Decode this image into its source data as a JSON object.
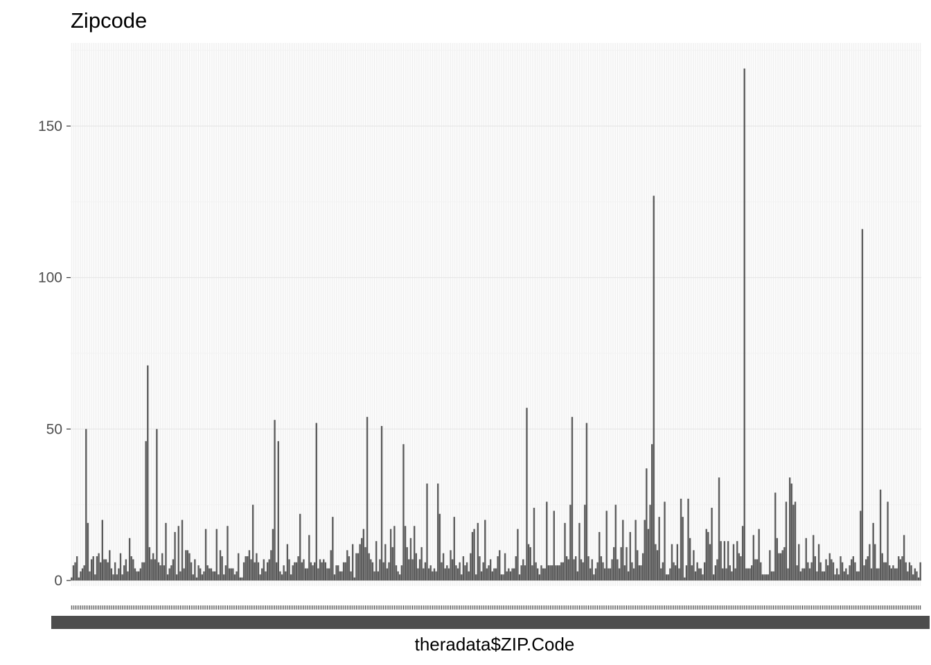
{
  "chart_data": {
    "type": "bar",
    "title": "Zipcode",
    "xlabel": "theradata$ZIP.Code",
    "ylabel": "",
    "ylim": [
      0,
      172
    ],
    "yticks": [
      0,
      50,
      100,
      150
    ],
    "grid": true,
    "bar_color": "#595959",
    "x_tick_labels_note": "467 overlapping zip code labels rendered illegibly",
    "values": [
      1,
      5,
      6,
      8,
      1,
      3,
      4,
      5,
      50,
      19,
      3,
      7,
      8,
      2,
      8,
      9,
      6,
      20,
      7,
      7,
      6,
      10,
      4,
      2,
      6,
      2,
      4,
      9,
      2,
      5,
      7,
      3,
      14,
      8,
      7,
      4,
      3,
      3,
      4,
      6,
      6,
      46,
      71,
      11,
      7,
      9,
      7,
      50,
      6,
      5,
      9,
      5,
      19,
      2,
      4,
      5,
      7,
      16,
      2,
      18,
      3,
      20,
      4,
      10,
      10,
      9,
      6,
      2,
      7,
      1,
      5,
      4,
      2,
      3,
      17,
      5,
      4,
      4,
      3,
      3,
      17,
      2,
      10,
      8,
      2,
      5,
      18,
      4,
      4,
      4,
      2,
      3,
      9,
      1,
      1,
      6,
      8,
      8,
      10,
      7,
      25,
      6,
      9,
      6,
      2,
      4,
      7,
      3,
      6,
      7,
      10,
      17,
      53,
      6,
      46,
      3,
      2,
      5,
      3,
      12,
      7,
      2,
      5,
      6,
      6,
      8,
      22,
      6,
      7,
      4,
      4,
      15,
      6,
      5,
      6,
      52,
      4,
      7,
      6,
      7,
      6,
      4,
      4,
      10,
      21,
      2,
      5,
      5,
      3,
      3,
      6,
      6,
      10,
      8,
      3,
      12,
      1,
      9,
      9,
      12,
      14,
      17,
      11,
      54,
      9,
      7,
      6,
      3,
      13,
      3,
      7,
      51,
      6,
      12,
      4,
      6,
      17,
      11,
      18,
      5,
      3,
      2,
      5,
      45,
      18,
      11,
      7,
      14,
      7,
      18,
      9,
      4,
      7,
      11,
      4,
      6,
      32,
      4,
      5,
      3,
      4,
      3,
      32,
      22,
      6,
      9,
      4,
      5,
      4,
      10,
      7,
      21,
      5,
      4,
      6,
      2,
      8,
      5,
      6,
      3,
      9,
      16,
      17,
      2,
      19,
      8,
      3,
      6,
      20,
      4,
      5,
      7,
      3,
      4,
      4,
      8,
      10,
      2,
      2,
      9,
      3,
      4,
      3,
      4,
      4,
      8,
      17,
      2,
      5,
      7,
      5,
      57,
      12,
      11,
      5,
      24,
      6,
      4,
      2,
      5,
      4,
      4,
      26,
      5,
      5,
      5,
      23,
      5,
      5,
      5,
      6,
      6,
      19,
      8,
      7,
      25,
      54,
      7,
      8,
      3,
      19,
      7,
      6,
      25,
      52,
      8,
      4,
      7,
      2,
      4,
      6,
      16,
      8,
      6,
      4,
      23,
      4,
      4,
      7,
      11,
      25,
      7,
      4,
      11,
      20,
      5,
      11,
      3,
      16,
      6,
      4,
      20,
      10,
      5,
      5,
      9,
      20,
      37,
      17,
      25,
      45,
      127,
      12,
      10,
      21,
      4,
      6,
      26,
      2,
      2,
      4,
      12,
      6,
      5,
      12,
      4,
      27,
      21,
      1,
      5,
      27,
      14,
      5,
      10,
      3,
      6,
      4,
      4,
      2,
      6,
      17,
      16,
      12,
      24,
      2,
      5,
      7,
      34,
      13,
      4,
      13,
      4,
      13,
      5,
      3,
      12,
      4,
      13,
      9,
      8,
      18,
      169,
      4,
      4,
      4,
      5,
      15,
      7,
      7,
      17,
      6,
      2,
      2,
      2,
      2,
      10,
      3,
      3,
      29,
      14,
      9,
      9,
      10,
      11,
      26,
      4,
      34,
      32,
      25,
      26,
      5,
      12,
      3,
      4,
      4,
      14,
      6,
      4,
      6,
      15,
      8,
      3,
      12,
      6,
      3,
      3,
      7,
      5,
      9,
      7,
      6,
      2,
      4,
      2,
      8,
      6,
      3,
      4,
      2,
      5,
      7,
      8,
      6,
      3,
      3,
      23,
      116,
      5,
      7,
      8,
      12,
      4,
      19,
      12,
      4,
      4,
      30,
      9,
      6,
      6,
      26,
      5,
      4,
      5,
      4,
      4,
      8,
      7,
      8,
      15,
      6,
      3,
      6,
      5,
      2,
      4,
      3,
      1,
      6
    ]
  }
}
